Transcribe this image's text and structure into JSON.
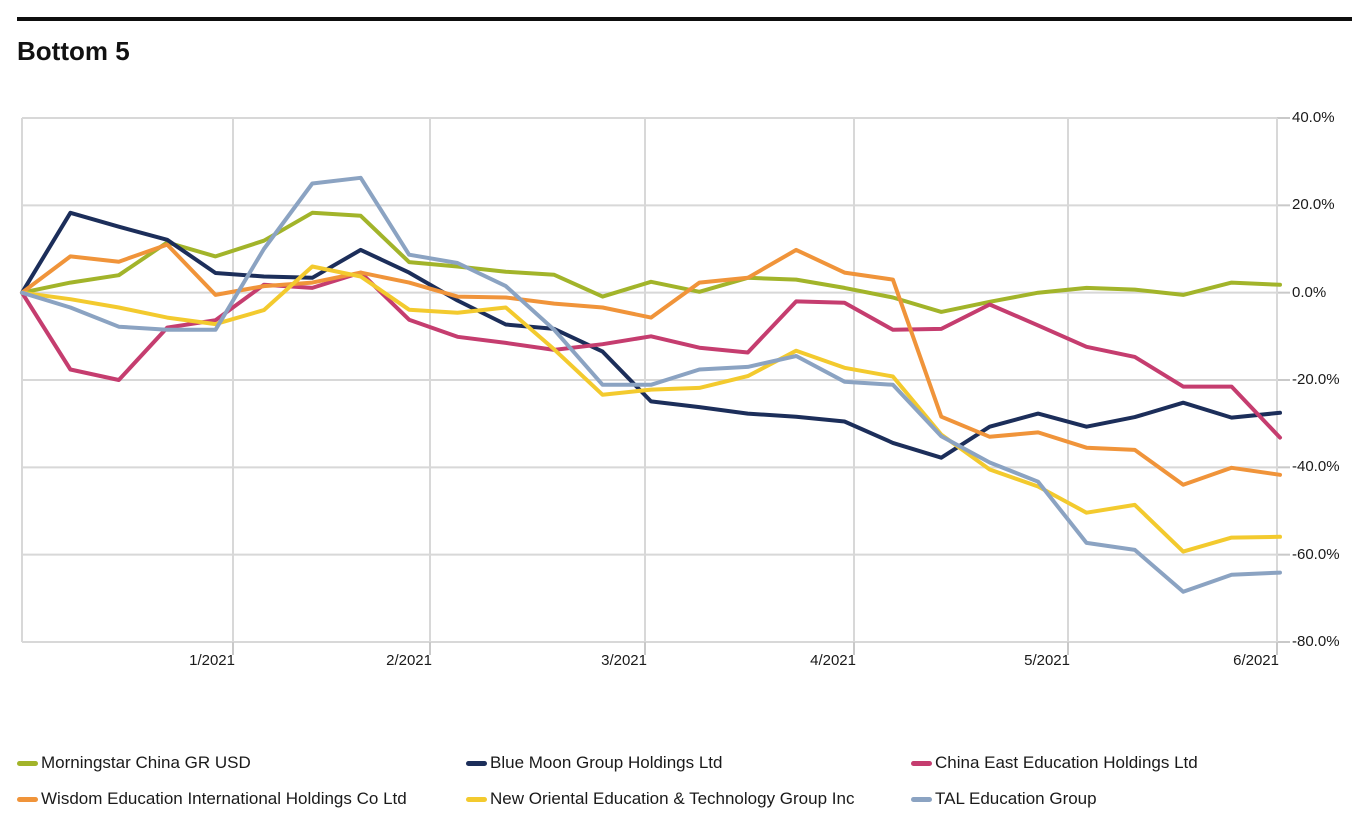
{
  "title": "Bottom 5",
  "chart_data": {
    "type": "line",
    "title": "Bottom 5",
    "x_ticks": [
      "1/2021",
      "2/2021",
      "3/2021",
      "4/2021",
      "5/2021",
      "6/2021"
    ],
    "y_ticks": [
      "40.0%",
      "20.0%",
      "0.0%",
      "-20.0%",
      "-40.0%",
      "-60.0%",
      "-80.0%"
    ],
    "ylim": [
      -80,
      40
    ],
    "y_unit": "%",
    "grid": true,
    "legend_position": "bottom",
    "points_per_series": 27,
    "x_start_value": 0,
    "series": [
      {
        "name": "Morningstar China GR USD",
        "color": "#a2b42a",
        "values": [
          0,
          2.3,
          4.0,
          11.5,
          8.3,
          11.9,
          18.3,
          17.6,
          7.0,
          6.0,
          4.8,
          4.1,
          -0.9,
          2.5,
          0.2,
          3.4,
          3.0,
          1.1,
          -1.1,
          -4.4,
          -2.1,
          0.0,
          1.1,
          0.7,
          -0.5,
          2.3,
          1.8
        ]
      },
      {
        "name": "Blue Moon Group Holdings Ltd",
        "color": "#1c2e5a",
        "values": [
          0,
          18.3,
          15.1,
          12.1,
          4.5,
          3.7,
          3.4,
          9.8,
          4.6,
          -1.8,
          -7.3,
          -8.3,
          -13.5,
          -24.9,
          -26.2,
          -27.7,
          -28.4,
          -29.5,
          -34.4,
          -37.8,
          -30.7,
          -27.7,
          -30.7,
          -28.5,
          -25.2,
          -28.6,
          -27.5
        ]
      },
      {
        "name": "China East Education Holdings Ltd",
        "color": "#c53d6f",
        "values": [
          0,
          -17.6,
          -20.0,
          -8.0,
          -6.3,
          1.8,
          1.1,
          4.6,
          -6.2,
          -10.1,
          -11.5,
          -13.1,
          -11.8,
          -10.0,
          -12.6,
          -13.7,
          -2.0,
          -2.3,
          -8.5,
          -8.3,
          -2.7,
          -7.5,
          -12.4,
          -14.7,
          -21.5,
          -21.5,
          -33.2
        ]
      },
      {
        "name": "Wisdom Education International Holdings Co Ltd",
        "color": "#f0943a",
        "values": [
          0,
          8.3,
          7.1,
          11.0,
          -0.5,
          1.5,
          2.3,
          4.6,
          2.3,
          -0.9,
          -1.1,
          -2.5,
          -3.4,
          -5.7,
          2.3,
          3.4,
          9.8,
          4.6,
          3.0,
          -28.4,
          -33.0,
          -32.0,
          -35.5,
          -36.0,
          -44.0,
          -40.1,
          -41.7
        ]
      },
      {
        "name": "New Oriental Education & Technology Group Inc",
        "color": "#f3ca2e",
        "values": [
          0,
          -1.5,
          -3.4,
          -5.7,
          -7.2,
          -4.0,
          6.0,
          3.7,
          -3.9,
          -4.6,
          -3.4,
          -13.0,
          -23.4,
          -22.2,
          -21.8,
          -19.1,
          -13.3,
          -17.2,
          -19.2,
          -32.5,
          -40.5,
          -44.4,
          -50.4,
          -48.6,
          -59.3,
          -56.1,
          -55.9
        ]
      },
      {
        "name": "TAL Education Group",
        "color": "#8ba3c2",
        "values": [
          0,
          -3.4,
          -7.8,
          -8.5,
          -8.5,
          10.0,
          25.0,
          26.3,
          8.7,
          6.8,
          1.5,
          -8.5,
          -21.1,
          -21.1,
          -17.6,
          -17.0,
          -14.5,
          -20.4,
          -21.1,
          -32.9,
          -38.9,
          -43.3,
          -57.3,
          -58.9,
          -68.5,
          -64.6,
          -64.1
        ]
      }
    ]
  }
}
